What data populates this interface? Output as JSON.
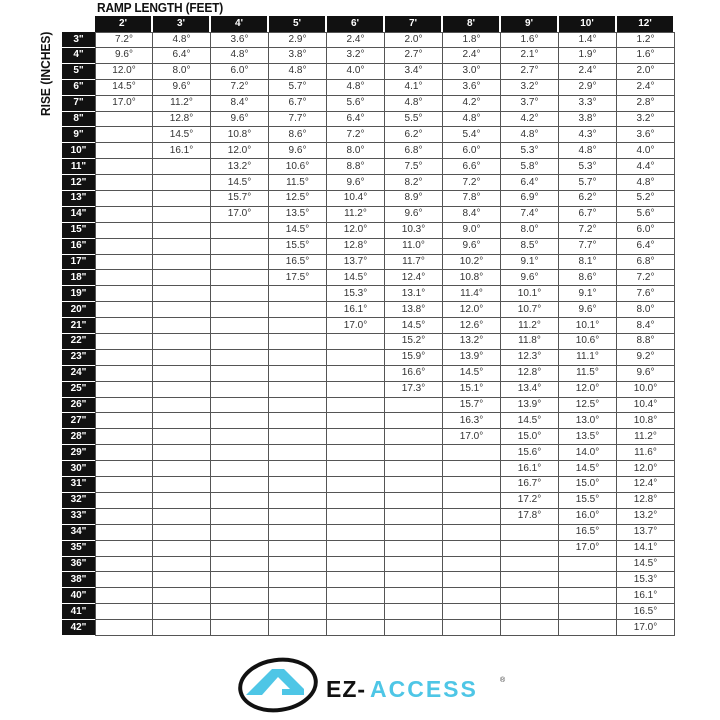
{
  "title": "RAMP LENGTH (FEET)",
  "row_axis_label": "RISE (INCHES)",
  "columns": [
    "2'",
    "3'",
    "4'",
    "5'",
    "6'",
    "7'",
    "8'",
    "9'",
    "10'",
    "12'"
  ],
  "rows": [
    {
      "rise": "3\"",
      "values": [
        "7.2°",
        "4.8°",
        "3.6°",
        "2.9°",
        "2.4°",
        "2.0°",
        "1.8°",
        "1.6°",
        "1.4°",
        "1.2°"
      ]
    },
    {
      "rise": "4\"",
      "values": [
        "9.6°",
        "6.4°",
        "4.8°",
        "3.8°",
        "3.2°",
        "2.7°",
        "2.4°",
        "2.1°",
        "1.9°",
        "1.6°"
      ]
    },
    {
      "rise": "5\"",
      "values": [
        "12.0°",
        "8.0°",
        "6.0°",
        "4.8°",
        "4.0°",
        "3.4°",
        "3.0°",
        "2.7°",
        "2.4°",
        "2.0°"
      ]
    },
    {
      "rise": "6\"",
      "values": [
        "14.5°",
        "9.6°",
        "7.2°",
        "5.7°",
        "4.8°",
        "4.1°",
        "3.6°",
        "3.2°",
        "2.9°",
        "2.4°"
      ]
    },
    {
      "rise": "7\"",
      "values": [
        "17.0°",
        "11.2°",
        "8.4°",
        "6.7°",
        "5.6°",
        "4.8°",
        "4.2°",
        "3.7°",
        "3.3°",
        "2.8°"
      ]
    },
    {
      "rise": "8\"",
      "values": [
        "",
        "12.8°",
        "9.6°",
        "7.7°",
        "6.4°",
        "5.5°",
        "4.8°",
        "4.2°",
        "3.8°",
        "3.2°"
      ]
    },
    {
      "rise": "9\"",
      "values": [
        "",
        "14.5°",
        "10.8°",
        "8.6°",
        "7.2°",
        "6.2°",
        "5.4°",
        "4.8°",
        "4.3°",
        "3.6°"
      ]
    },
    {
      "rise": "10\"",
      "values": [
        "",
        "16.1°",
        "12.0°",
        "9.6°",
        "8.0°",
        "6.8°",
        "6.0°",
        "5.3°",
        "4.8°",
        "4.0°"
      ]
    },
    {
      "rise": "11\"",
      "values": [
        "",
        "",
        "13.2°",
        "10.6°",
        "8.8°",
        "7.5°",
        "6.6°",
        "5.8°",
        "5.3°",
        "4.4°"
      ]
    },
    {
      "rise": "12\"",
      "values": [
        "",
        "",
        "14.5°",
        "11.5°",
        "9.6°",
        "8.2°",
        "7.2°",
        "6.4°",
        "5.7°",
        "4.8°"
      ]
    },
    {
      "rise": "13\"",
      "values": [
        "",
        "",
        "15.7°",
        "12.5°",
        "10.4°",
        "8.9°",
        "7.8°",
        "6.9°",
        "6.2°",
        "5.2°"
      ]
    },
    {
      "rise": "14\"",
      "values": [
        "",
        "",
        "17.0°",
        "13.5°",
        "11.2°",
        "9.6°",
        "8.4°",
        "7.4°",
        "6.7°",
        "5.6°"
      ]
    },
    {
      "rise": "15\"",
      "values": [
        "",
        "",
        "",
        "14.5°",
        "12.0°",
        "10.3°",
        "9.0°",
        "8.0°",
        "7.2°",
        "6.0°"
      ]
    },
    {
      "rise": "16\"",
      "values": [
        "",
        "",
        "",
        "15.5°",
        "12.8°",
        "11.0°",
        "9.6°",
        "8.5°",
        "7.7°",
        "6.4°"
      ]
    },
    {
      "rise": "17\"",
      "values": [
        "",
        "",
        "",
        "16.5°",
        "13.7°",
        "11.7°",
        "10.2°",
        "9.1°",
        "8.1°",
        "6.8°"
      ]
    },
    {
      "rise": "18\"",
      "values": [
        "",
        "",
        "",
        "17.5°",
        "14.5°",
        "12.4°",
        "10.8°",
        "9.6°",
        "8.6°",
        "7.2°"
      ]
    },
    {
      "rise": "19\"",
      "values": [
        "",
        "",
        "",
        "",
        "15.3°",
        "13.1°",
        "11.4°",
        "10.1°",
        "9.1°",
        "7.6°"
      ]
    },
    {
      "rise": "20\"",
      "values": [
        "",
        "",
        "",
        "",
        "16.1°",
        "13.8°",
        "12.0°",
        "10.7°",
        "9.6°",
        "8.0°"
      ]
    },
    {
      "rise": "21\"",
      "values": [
        "",
        "",
        "",
        "",
        "17.0°",
        "14.5°",
        "12.6°",
        "11.2°",
        "10.1°",
        "8.4°"
      ]
    },
    {
      "rise": "22\"",
      "values": [
        "",
        "",
        "",
        "",
        "",
        "15.2°",
        "13.2°",
        "11.8°",
        "10.6°",
        "8.8°"
      ]
    },
    {
      "rise": "23\"",
      "values": [
        "",
        "",
        "",
        "",
        "",
        "15.9°",
        "13.9°",
        "12.3°",
        "11.1°",
        "9.2°"
      ]
    },
    {
      "rise": "24\"",
      "values": [
        "",
        "",
        "",
        "",
        "",
        "16.6°",
        "14.5°",
        "12.8°",
        "11.5°",
        "9.6°"
      ]
    },
    {
      "rise": "25\"",
      "values": [
        "",
        "",
        "",
        "",
        "",
        "17.3°",
        "15.1°",
        "13.4°",
        "12.0°",
        "10.0°"
      ]
    },
    {
      "rise": "26\"",
      "values": [
        "",
        "",
        "",
        "",
        "",
        "",
        "15.7°",
        "13.9°",
        "12.5°",
        "10.4°"
      ]
    },
    {
      "rise": "27\"",
      "values": [
        "",
        "",
        "",
        "",
        "",
        "",
        "16.3°",
        "14.5°",
        "13.0°",
        "10.8°"
      ]
    },
    {
      "rise": "28\"",
      "values": [
        "",
        "",
        "",
        "",
        "",
        "",
        "17.0°",
        "15.0°",
        "13.5°",
        "11.2°"
      ]
    },
    {
      "rise": "29\"",
      "values": [
        "",
        "",
        "",
        "",
        "",
        "",
        "",
        "15.6°",
        "14.0°",
        "11.6°"
      ]
    },
    {
      "rise": "30\"",
      "values": [
        "",
        "",
        "",
        "",
        "",
        "",
        "",
        "16.1°",
        "14.5°",
        "12.0°"
      ]
    },
    {
      "rise": "31\"",
      "values": [
        "",
        "",
        "",
        "",
        "",
        "",
        "",
        "16.7°",
        "15.0°",
        "12.4°"
      ]
    },
    {
      "rise": "32\"",
      "values": [
        "",
        "",
        "",
        "",
        "",
        "",
        "",
        "17.2°",
        "15.5°",
        "12.8°"
      ]
    },
    {
      "rise": "33\"",
      "values": [
        "",
        "",
        "",
        "",
        "",
        "",
        "",
        "17.8°",
        "16.0°",
        "13.2°"
      ]
    },
    {
      "rise": "34\"",
      "values": [
        "",
        "",
        "",
        "",
        "",
        "",
        "",
        "",
        "16.5°",
        "13.7°"
      ]
    },
    {
      "rise": "35\"",
      "values": [
        "",
        "",
        "",
        "",
        "",
        "",
        "",
        "",
        "17.0°",
        "14.1°"
      ]
    },
    {
      "rise": "36\"",
      "values": [
        "",
        "",
        "",
        "",
        "",
        "",
        "",
        "",
        "",
        "14.5°"
      ]
    },
    {
      "rise": "38\"",
      "values": [
        "",
        "",
        "",
        "",
        "",
        "",
        "",
        "",
        "",
        "15.3°"
      ]
    },
    {
      "rise": "40\"",
      "values": [
        "",
        "",
        "",
        "",
        "",
        "",
        "",
        "",
        "",
        "16.1°"
      ]
    },
    {
      "rise": "41\"",
      "values": [
        "",
        "",
        "",
        "",
        "",
        "",
        "",
        "",
        "",
        "16.5°"
      ]
    },
    {
      "rise": "42\"",
      "values": [
        "",
        "",
        "",
        "",
        "",
        "",
        "",
        "",
        "",
        "17.0°"
      ]
    }
  ],
  "logo": {
    "text": "EZ-ACCESS",
    "brand_color": "#4ec6e6",
    "dark_color": "#111111"
  }
}
